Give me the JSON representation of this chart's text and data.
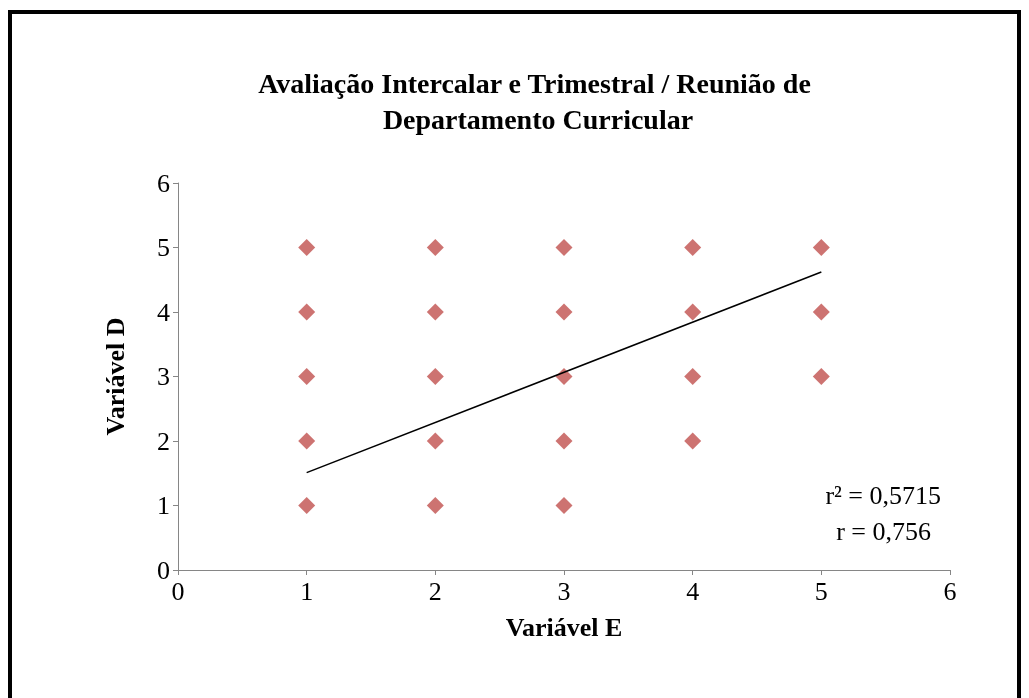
{
  "chart_data": {
    "type": "scatter",
    "title": "Avaliação Intercalar e Trimestral / Reunião de Departamento Curricular",
    "xlabel": "Variável E",
    "ylabel": "Variável D",
    "xlim": [
      0,
      6
    ],
    "xticks": [
      0,
      1,
      2,
      3,
      4,
      5,
      6
    ],
    "ylim": [
      0,
      6
    ],
    "yticks": [
      0,
      1,
      2,
      3,
      4,
      5,
      6
    ],
    "grid": false,
    "marker": "diamond",
    "series": [
      {
        "color": "#c0504d",
        "x": [
          1,
          1,
          1,
          1,
          1,
          2,
          2,
          2,
          2,
          2,
          3,
          3,
          3,
          3,
          3,
          4,
          4,
          4,
          4,
          5,
          5,
          5
        ],
        "values": [
          1,
          2,
          3,
          4,
          5,
          1,
          2,
          3,
          4,
          5,
          1,
          2,
          3,
          4,
          5,
          2,
          3,
          4,
          5,
          3,
          4,
          5
        ]
      },
      {
        "type": "line",
        "color": "#000000",
        "x": [
          1,
          5
        ],
        "values": [
          1.51,
          4.62
        ],
        "marker": "none"
      }
    ],
    "annotations": [
      "r² = 0,5715",
      "r = 0,756"
    ]
  }
}
